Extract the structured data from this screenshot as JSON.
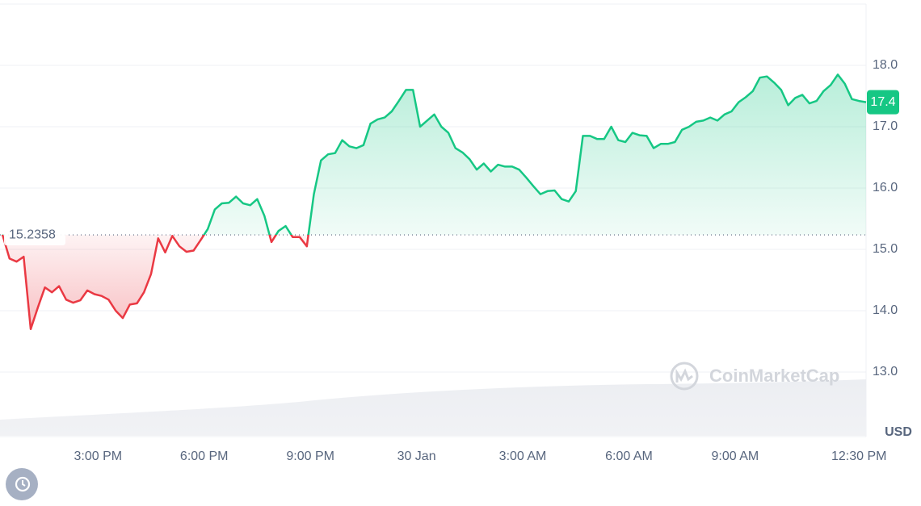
{
  "chart_data": {
    "type": "line",
    "x": [
      12.3,
      12.5,
      12.7,
      12.9,
      13.1,
      13.3,
      13.5,
      13.7,
      13.9,
      14.1,
      14.3,
      14.5,
      14.7,
      14.9,
      15.1,
      15.3,
      15.5,
      15.7,
      15.9,
      16.1,
      16.3,
      16.5,
      16.7,
      16.9,
      17.1,
      17.3,
      17.5,
      17.7,
      17.9,
      18.1,
      18.3,
      18.5,
      18.7,
      18.9,
      19.1,
      19.3,
      19.5,
      19.7,
      19.9,
      20.1,
      20.3,
      20.5,
      20.7,
      20.9,
      21.1,
      21.3,
      21.5,
      21.7,
      21.9,
      22.1,
      22.3,
      22.5,
      22.7,
      22.9,
      23.1,
      23.3,
      23.5,
      23.7,
      23.9,
      24.1,
      24.3,
      24.5,
      24.7,
      24.9,
      25.1,
      25.3,
      25.5,
      25.7,
      25.9,
      26.1,
      26.3,
      26.5,
      26.7,
      26.9,
      27.1,
      27.3,
      27.5,
      27.7,
      27.9,
      28.1,
      28.3,
      28.5,
      28.7,
      28.9,
      29.1,
      29.3,
      29.5,
      29.7,
      29.9,
      30.1,
      30.3,
      30.5,
      30.7,
      30.9,
      31.1,
      31.3,
      31.5,
      31.7,
      31.9,
      32.1,
      32.3,
      32.5,
      32.7,
      32.9,
      33.1,
      33.3,
      33.5,
      33.7,
      33.9,
      34.1,
      34.3,
      34.5,
      34.7,
      34.9,
      35.1,
      35.3,
      35.5,
      35.7,
      35.9,
      36.1,
      36.3,
      36.5,
      36.7
    ],
    "values": [
      15.24,
      14.85,
      14.8,
      14.88,
      13.7,
      14.05,
      14.38,
      14.3,
      14.4,
      14.18,
      14.13,
      14.17,
      14.33,
      14.27,
      14.24,
      14.18,
      14.0,
      13.88,
      14.1,
      14.12,
      14.3,
      14.6,
      15.18,
      14.95,
      15.22,
      15.05,
      14.96,
      14.98,
      15.15,
      15.33,
      15.65,
      15.75,
      15.76,
      15.86,
      15.75,
      15.72,
      15.82,
      15.55,
      15.12,
      15.3,
      15.38,
      15.2,
      15.2,
      15.05,
      15.9,
      16.45,
      16.55,
      16.57,
      16.78,
      16.68,
      16.65,
      16.7,
      17.05,
      17.12,
      17.15,
      17.25,
      17.42,
      17.6,
      17.6,
      17.0,
      17.1,
      17.2,
      17.0,
      16.9,
      16.65,
      16.58,
      16.47,
      16.3,
      16.4,
      16.27,
      16.38,
      16.35,
      16.35,
      16.3,
      16.17,
      16.03,
      15.9,
      15.95,
      15.96,
      15.82,
      15.78,
      15.95,
      16.85,
      16.85,
      16.8,
      16.8,
      17.0,
      16.78,
      16.75,
      16.9,
      16.86,
      16.85,
      16.65,
      16.72,
      16.72,
      16.75,
      16.95,
      17.0,
      17.08,
      17.1,
      17.15,
      17.1,
      17.2,
      17.25,
      17.4,
      17.48,
      17.58,
      17.8,
      17.82,
      17.72,
      17.6,
      17.35,
      17.47,
      17.52,
      17.38,
      17.42,
      17.58,
      17.68,
      17.85,
      17.7,
      17.45,
      17.42,
      17.4
    ],
    "up_color": "#16c784",
    "down_color": "#ea3943",
    "baseline": 15.2358,
    "current_price": 17.4,
    "xlim": [
      12.3,
      36.7
    ],
    "ylim": [
      11.96,
      19.0
    ],
    "xticks": [
      {
        "value": 15,
        "label": "3:00 PM"
      },
      {
        "value": 18,
        "label": "6:00 PM"
      },
      {
        "value": 21,
        "label": "9:00 PM"
      },
      {
        "value": 24,
        "label": "30 Jan"
      },
      {
        "value": 27,
        "label": "3:00 AM"
      },
      {
        "value": 30,
        "label": "6:00 AM"
      },
      {
        "value": 33,
        "label": "9:00 AM"
      },
      {
        "value": 36.5,
        "label": "12:30 PM"
      }
    ],
    "yticks": [
      {
        "value": 13,
        "label": "13.0"
      },
      {
        "value": 14,
        "label": "14.0"
      },
      {
        "value": 15,
        "label": "15.0"
      },
      {
        "value": 16,
        "label": "16.0"
      },
      {
        "value": 17,
        "label": "17.0"
      },
      {
        "value": 18,
        "label": "18.0"
      }
    ],
    "y_axis_unit": "USD",
    "watermark": "CoinMarketCap",
    "grid": true
  }
}
